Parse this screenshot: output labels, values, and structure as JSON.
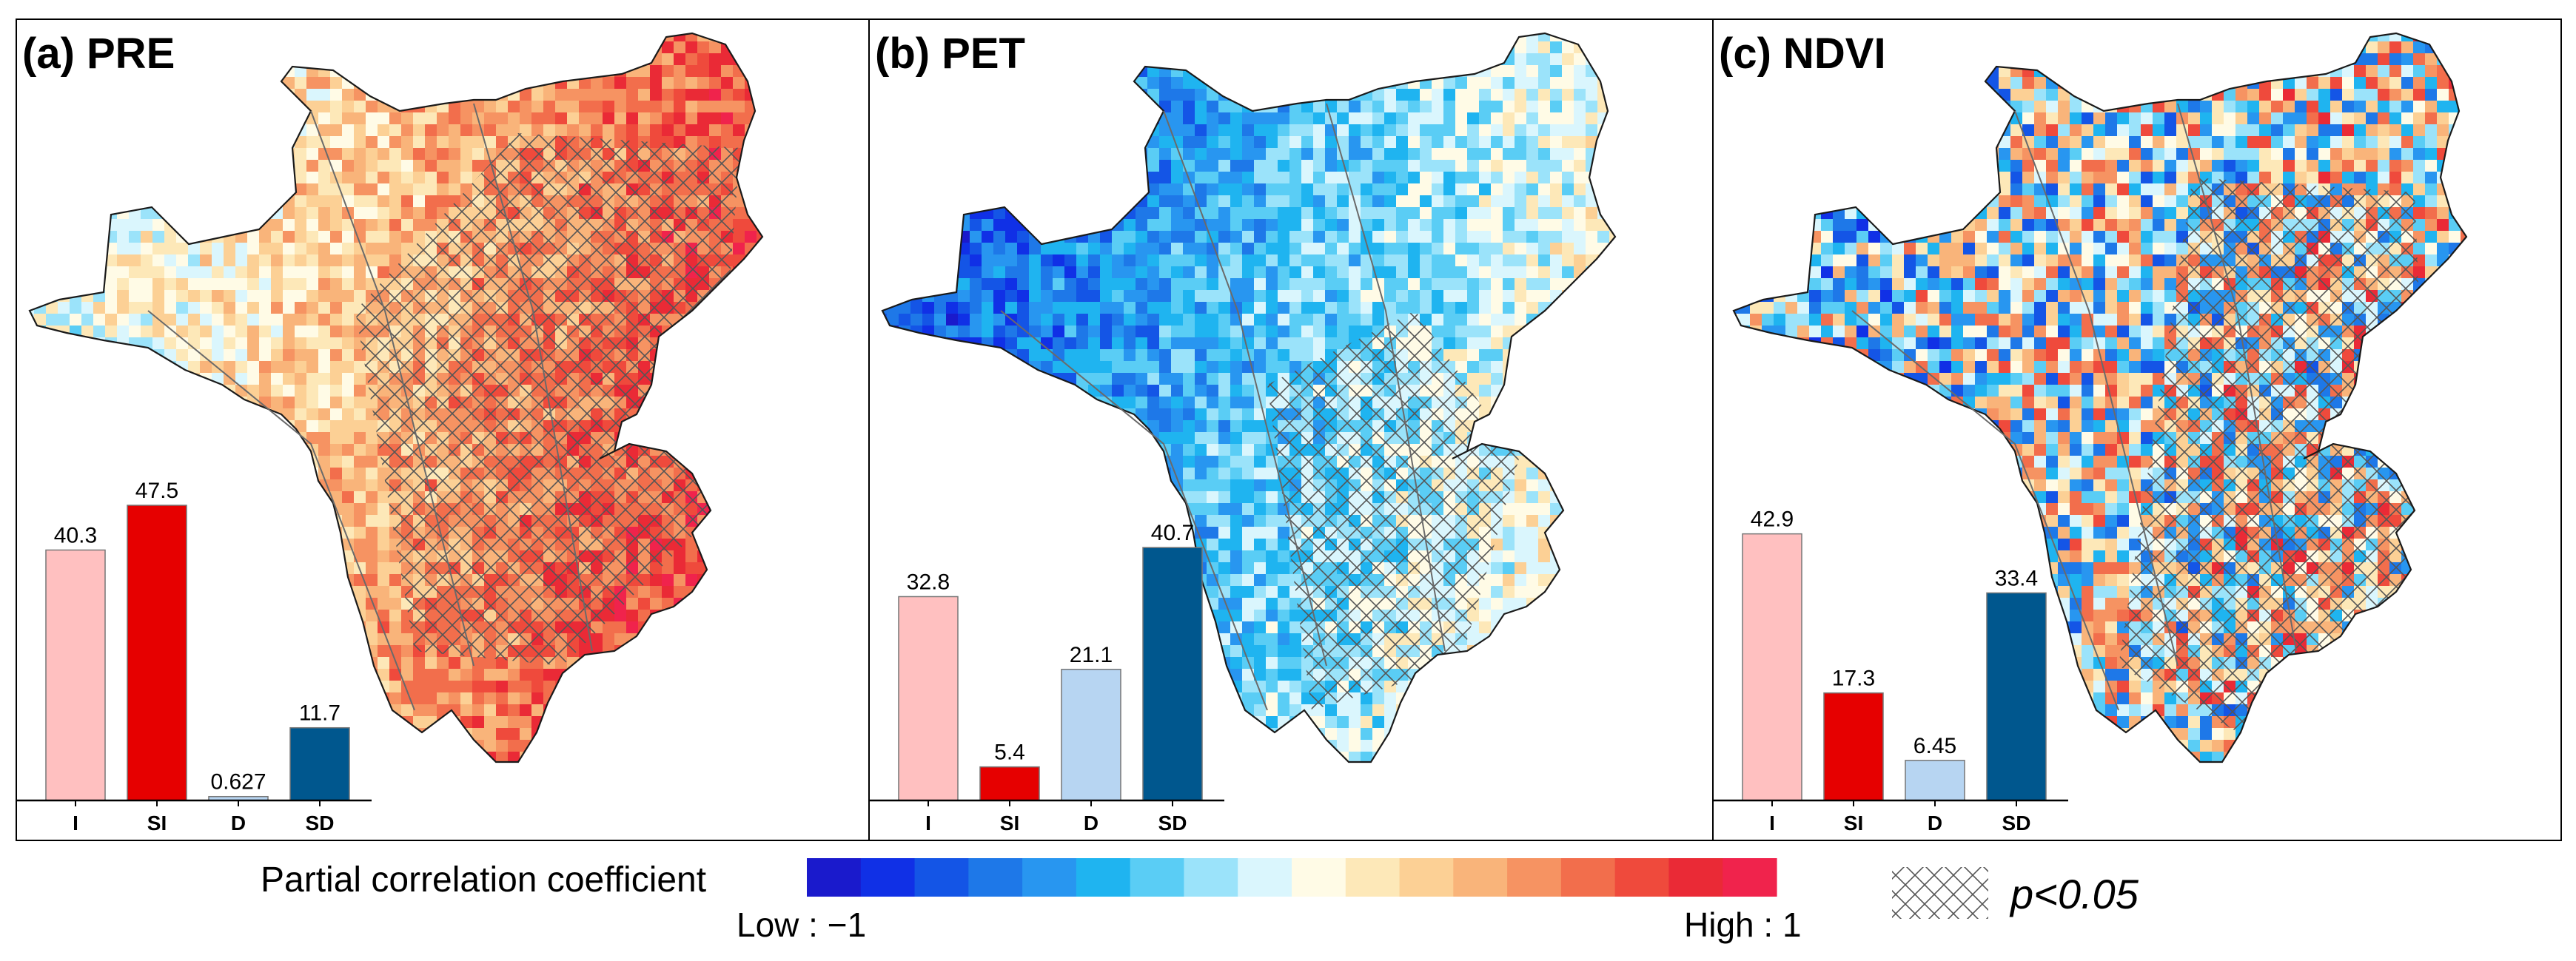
{
  "chart_data": [
    {
      "type": "bar",
      "panel": "a",
      "title": "(a) PRE",
      "categories": [
        "I",
        "SI",
        "D",
        "SD"
      ],
      "values": [
        40.3,
        47.5,
        0.627,
        11.7
      ],
      "value_labels": [
        "40.3",
        "47.5",
        "0.627",
        "11.7"
      ],
      "colors": [
        "#ffc0c0",
        "#e60000",
        "#b7d5f2",
        "#00578e"
      ],
      "ylim": [
        0,
        50
      ],
      "map_bias": 0.35
    },
    {
      "type": "bar",
      "panel": "b",
      "title": "(b) PET",
      "categories": [
        "I",
        "SI",
        "D",
        "SD"
      ],
      "values": [
        32.8,
        5.4,
        21.1,
        40.7
      ],
      "value_labels": [
        "32.8",
        "5.4",
        "21.1",
        "40.7"
      ],
      "colors": [
        "#ffc0c0",
        "#e60000",
        "#b7d5f2",
        "#00578e"
      ],
      "ylim": [
        0,
        50
      ],
      "map_bias": -0.35
    },
    {
      "type": "bar",
      "panel": "c",
      "title": "(c) NDVI",
      "categories": [
        "I",
        "SI",
        "D",
        "SD"
      ],
      "values": [
        42.9,
        17.3,
        6.45,
        33.4
      ],
      "value_labels": [
        "42.9",
        "17.3",
        "6.45",
        "33.4"
      ],
      "colors": [
        "#ffc0c0",
        "#e60000",
        "#b7d5f2",
        "#00578e"
      ],
      "ylim": [
        0,
        50
      ],
      "map_bias": 0.0
    }
  ],
  "legend": {
    "title": "Partial correlation coefficient",
    "low_label": "Low : −1",
    "high_label": "High : 1",
    "significance_label": "p<0.05",
    "colors": [
      "#1a1acc",
      "#1030e6",
      "#1455e6",
      "#1e78e8",
      "#2896f0",
      "#1fb4f0",
      "#5acdf5",
      "#9be3fa",
      "#daf6fd",
      "#fffbe6",
      "#fde8b8",
      "#fcd095",
      "#f9b47a",
      "#f69362",
      "#f26e4c",
      "#ef4a3c",
      "#ea2a36",
      "#f0234c"
    ]
  }
}
